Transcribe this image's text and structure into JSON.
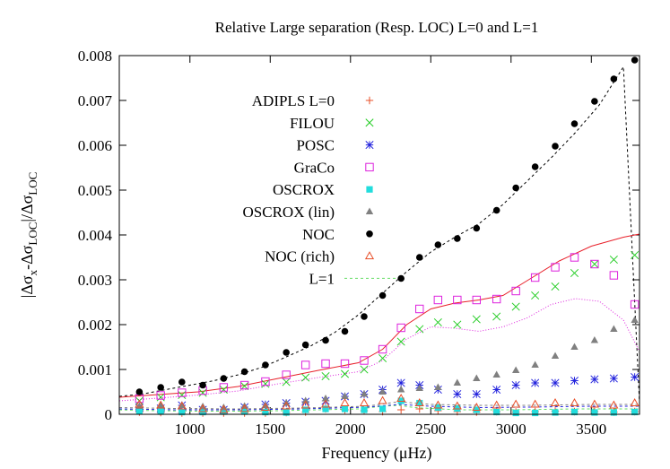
{
  "chart_data": {
    "type": "scatter",
    "title": "Relative Large separation (Resp. LOC) L=0 and L=1",
    "xlabel": "Frequency (μHz)",
    "ylabel": "|Δσx-ΔσLOC|/ΔσLOC",
    "ylabel_parts": {
      "a": "|Δσ",
      "b": "x",
      "c": "-Δσ",
      "d": "LOC",
      "e": "|/Δσ",
      "f": "LOC"
    },
    "xlim": [
      560,
      3800
    ],
    "ylim": [
      0,
      0.008
    ],
    "x_ticks": [
      1000,
      1500,
      2000,
      2500,
      3000,
      3500
    ],
    "x_tick_labels": [
      "1000",
      "1500",
      "2000",
      "2500",
      "3000",
      "3500"
    ],
    "y_ticks": [
      0,
      0.001,
      0.002,
      0.003,
      0.004,
      0.005,
      0.006,
      0.007,
      0.008
    ],
    "y_tick_labels": [
      "0",
      "0.001",
      "0.002",
      "0.003",
      "0.004",
      "0.005",
      "0.006",
      "0.007",
      "0.008"
    ],
    "grid": false,
    "legend_position": "top-center",
    "legend": [
      {
        "label": "ADIPLS L=0",
        "marker": "plus",
        "color": "#e8502a"
      },
      {
        "label": "FILOU",
        "marker": "cross",
        "color": "#22cc22"
      },
      {
        "label": "POSC",
        "marker": "star",
        "color": "#2222dd"
      },
      {
        "label": "GraCo",
        "marker": "open-square",
        "color": "#dd22dd"
      },
      {
        "label": "OSCROX",
        "marker": "filled-square",
        "color": "#22dddd"
      },
      {
        "label": "OSCROX (lin)",
        "marker": "filled-triangle",
        "color": "#808080"
      },
      {
        "label": "NOC",
        "marker": "filled-circle",
        "color": "#000000"
      },
      {
        "label": "NOC (rich)",
        "marker": "open-triangle",
        "color": "#e8502a"
      },
      {
        "label": "L=1",
        "marker": "dashed-line",
        "color": "#66dd66"
      }
    ],
    "x": [
      685,
      818,
      950,
      1080,
      1210,
      1340,
      1470,
      1600,
      1720,
      1845,
      1965,
      2085,
      2200,
      2315,
      2430,
      2545,
      2665,
      2785,
      2910,
      3030,
      3150,
      3275,
      3395,
      3520,
      3640,
      3770
    ],
    "series": [
      {
        "name": "ADIPLS L=0",
        "marker": "plus",
        "color": "#e8502a",
        "values": [
          5e-05,
          4e-05,
          3e-05,
          3e-05,
          3e-05,
          3e-05,
          3e-05,
          4e-05,
          5e-05,
          0.00012,
          0.0001,
          8e-05,
          6e-05,
          0.0001,
          0.00012,
          8e-05,
          6e-05,
          5e-05,
          6e-05,
          5e-05,
          6e-05,
          7e-05,
          6e-05,
          6e-05,
          5e-05,
          6e-05
        ]
      },
      {
        "name": "FILOU",
        "marker": "cross",
        "color": "#22cc22",
        "values": [
          0.0003,
          0.00038,
          0.00043,
          0.00048,
          0.00055,
          0.00063,
          0.00068,
          0.00072,
          0.00082,
          0.00085,
          0.0009,
          0.001,
          0.00125,
          0.00162,
          0.0019,
          0.00205,
          0.002,
          0.00212,
          0.00218,
          0.0024,
          0.00265,
          0.00285,
          0.00315,
          0.00335,
          0.00345,
          0.00355
        ]
      },
      {
        "name": "POSC",
        "marker": "star",
        "color": "#2222dd",
        "values": [
          0.00015,
          0.00013,
          0.0002,
          0.0001,
          0.0001,
          0.00016,
          0.00022,
          0.00025,
          0.00028,
          0.0003,
          0.0004,
          0.00045,
          0.00055,
          0.0007,
          0.00065,
          0.00055,
          0.00045,
          0.00045,
          0.00055,
          0.00065,
          0.0007,
          0.0007,
          0.00075,
          0.00078,
          0.0008,
          0.00083
        ]
      },
      {
        "name": "GraCo",
        "marker": "open-square",
        "color": "#dd22dd",
        "values": [
          0.00035,
          0.00042,
          0.00048,
          0.00053,
          0.0006,
          0.00065,
          0.00073,
          0.00088,
          0.0011,
          0.00113,
          0.00113,
          0.0012,
          0.00145,
          0.00193,
          0.00235,
          0.00255,
          0.00255,
          0.00255,
          0.00257,
          0.00275,
          0.00305,
          0.00328,
          0.0035,
          0.00335,
          0.0031,
          0.00245
        ]
      },
      {
        "name": "OSCROX",
        "marker": "filled-square",
        "color": "#22dddd",
        "values": [
          8e-05,
          6e-05,
          5e-05,
          5e-05,
          6e-05,
          6e-05,
          5e-05,
          4e-05,
          0.0001,
          0.00012,
          0.00012,
          0.0001,
          0.00012,
          0.0003,
          0.00025,
          0.00015,
          0.00013,
          0.0001,
          5e-05,
          3e-05,
          3e-05,
          4e-05,
          5e-05,
          4e-05,
          4e-05,
          5e-05
        ]
      },
      {
        "name": "OSCROX (lin)",
        "marker": "filled-triangle",
        "color": "#808080",
        "values": [
          0.00018,
          0.0002,
          0.0002,
          0.00017,
          0.00015,
          0.00018,
          0.0002,
          0.00025,
          0.0003,
          0.00035,
          0.0004,
          0.00045,
          0.0005,
          0.00055,
          0.00058,
          0.0006,
          0.0007,
          0.0008,
          0.00088,
          0.00098,
          0.0011,
          0.0013,
          0.0015,
          0.00165,
          0.0019,
          0.0021
        ]
      },
      {
        "name": "NOC",
        "marker": "filled-circle",
        "color": "#000000",
        "values": [
          0.0005,
          0.0006,
          0.00072,
          0.00065,
          0.0008,
          0.00095,
          0.0011,
          0.00138,
          0.00155,
          0.00165,
          0.00185,
          0.00218,
          0.00265,
          0.00303,
          0.0035,
          0.00378,
          0.00392,
          0.00415,
          0.00455,
          0.00505,
          0.00552,
          0.00598,
          0.00648,
          0.00698,
          0.00748,
          0.0079
        ]
      },
      {
        "name": "NOC (rich)",
        "marker": "open-triangle",
        "color": "#e8502a",
        "values": [
          0.00022,
          0.0002,
          0.00018,
          0.00012,
          0.0001,
          0.00012,
          0.00015,
          0.00018,
          0.0002,
          0.00022,
          0.00025,
          0.00025,
          0.0003,
          0.00035,
          0.00025,
          0.0002,
          0.00018,
          0.00015,
          0.0002,
          0.00022,
          0.00022,
          0.00025,
          0.00025,
          0.00022,
          0.0002,
          0.00025
        ]
      }
    ],
    "lines": [
      {
        "name": "L=1",
        "style": "dashed",
        "color": "#66dd66",
        "x": [
          560,
          800,
          1050,
          1300,
          1550,
          1800,
          2050,
          2200,
          2300,
          2400,
          2550,
          2700,
          2850,
          3000,
          3200,
          3400,
          3600,
          3800
        ],
        "values": [
          0.0001,
          8e-05,
          7e-05,
          7e-05,
          8e-05,
          0.0001,
          0.00012,
          0.00018,
          0.0002,
          0.00015,
          0.00012,
          0.0001,
          0.0001,
          0.0001,
          0.00011,
          0.00012,
          0.00012,
          0.00012
        ]
      },
      {
        "name": "NOC L=1",
        "style": "dashed",
        "color": "#000000",
        "x": [
          560,
          700,
          850,
          1000,
          1150,
          1300,
          1450,
          1600,
          1750,
          1900,
          2050,
          2200,
          2350,
          2500,
          2650,
          2800,
          2950,
          3100,
          3250,
          3400,
          3550,
          3700,
          3800
        ],
        "values": [
          0.0004,
          0.00045,
          0.00055,
          0.00065,
          0.00075,
          0.00088,
          0.00105,
          0.00128,
          0.00152,
          0.00182,
          0.00222,
          0.0027,
          0.00318,
          0.00362,
          0.00395,
          0.00425,
          0.00468,
          0.0052,
          0.00572,
          0.00628,
          0.0069,
          0.00775,
          0.00025
        ]
      },
      {
        "name": "FILOU L=1",
        "style": "solid",
        "color": "#e8202a",
        "x": [
          560,
          800,
          1050,
          1300,
          1550,
          1800,
          2050,
          2200,
          2350,
          2500,
          2650,
          2800,
          2950,
          3100,
          3300,
          3500,
          3700,
          3800
        ],
        "values": [
          0.00038,
          0.00044,
          0.0005,
          0.00062,
          0.0008,
          0.00098,
          0.00115,
          0.00145,
          0.002,
          0.00235,
          0.00248,
          0.00255,
          0.00265,
          0.00298,
          0.00342,
          0.00375,
          0.00395,
          0.00402
        ]
      },
      {
        "name": "GraCo L=1",
        "style": "dotted",
        "color": "#dd22dd",
        "x": [
          560,
          800,
          1050,
          1300,
          1550,
          1800,
          2050,
          2200,
          2350,
          2500,
          2650,
          2800,
          2950,
          3100,
          3250,
          3400,
          3550,
          3700,
          3800
        ],
        "values": [
          0.0003,
          0.00036,
          0.00043,
          0.00052,
          0.00068,
          0.00082,
          0.00095,
          0.0012,
          0.00168,
          0.00195,
          0.00192,
          0.00185,
          0.00195,
          0.00215,
          0.00245,
          0.00258,
          0.00252,
          0.0021,
          0.0014
        ]
      },
      {
        "name": "POSC L=1",
        "style": "dashed",
        "color": "#2222dd",
        "x": [
          560,
          900,
          1300,
          1700,
          2100,
          2300,
          2500,
          2800,
          3100,
          3500,
          3800
        ],
        "values": [
          0.00012,
          0.0001,
          0.0001,
          0.00012,
          0.00016,
          0.00022,
          0.00018,
          0.00015,
          0.00016,
          0.00018,
          0.00018
        ]
      },
      {
        "name": "OSCROX (lin) L=1",
        "style": "dashed",
        "color": "#808080",
        "x": [
          560,
          900,
          1300,
          1700,
          2100,
          2300,
          2500,
          2800,
          3100,
          3500,
          3800
        ],
        "values": [
          0.00015,
          0.00013,
          0.00012,
          0.00014,
          0.00018,
          0.00028,
          0.00022,
          0.0002,
          0.0002,
          0.00022,
          0.00022
        ]
      }
    ]
  }
}
